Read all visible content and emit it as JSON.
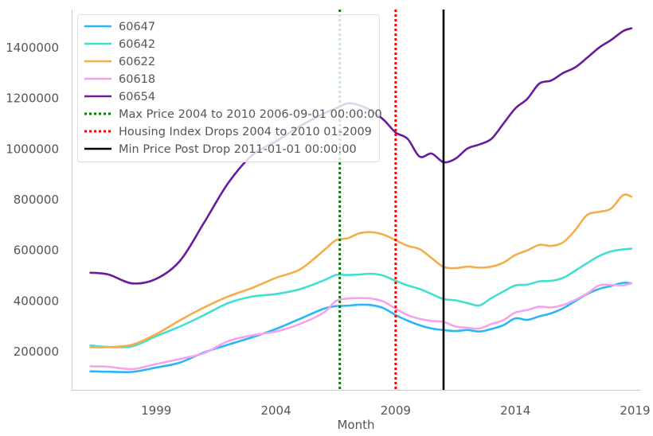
{
  "chart_data": {
    "type": "line",
    "title": "",
    "xlabel": "Month",
    "ylabel": "",
    "xlim": [
      1995.5,
      2019.25
    ],
    "ylim": [
      50000,
      1550000
    ],
    "x_ticks": [
      1999,
      2004,
      2009,
      2014,
      2019
    ],
    "x_tick_labels": [
      "1999",
      "2004",
      "2009",
      "2014",
      "2019"
    ],
    "y_ticks": [
      200000,
      400000,
      600000,
      800000,
      1000000,
      1200000,
      1400000
    ],
    "y_tick_labels": [
      "200000",
      "400000",
      "600000",
      "800000",
      "1000000",
      "1200000",
      "1400000"
    ],
    "grid": false,
    "legend_position": "top-left",
    "series": [
      {
        "name": "60647",
        "color": "#29b6f6",
        "points": [
          [
            1996.25,
            123000
          ],
          [
            1997.0,
            121500
          ],
          [
            1998.0,
            121000
          ],
          [
            1999.0,
            138000
          ],
          [
            2000.0,
            158000
          ],
          [
            2001.0,
            198000
          ],
          [
            2002.0,
            228000
          ],
          [
            2003.0,
            257000
          ],
          [
            2004.0,
            290000
          ],
          [
            2005.0,
            330000
          ],
          [
            2006.0,
            370000
          ],
          [
            2006.5,
            380000
          ],
          [
            2007.0,
            382000
          ],
          [
            2007.5,
            386000
          ],
          [
            2008.0,
            384000
          ],
          [
            2008.5,
            372000
          ],
          [
            2009.0,
            345000
          ],
          [
            2009.5,
            323000
          ],
          [
            2010.0,
            305000
          ],
          [
            2010.5,
            292000
          ],
          [
            2011.0,
            286000
          ],
          [
            2011.5,
            282000
          ],
          [
            2012.0,
            286000
          ],
          [
            2012.5,
            280000
          ],
          [
            2013.0,
            290000
          ],
          [
            2013.5,
            305000
          ],
          [
            2014.0,
            332000
          ],
          [
            2014.5,
            326000
          ],
          [
            2015.0,
            340000
          ],
          [
            2015.5,
            352000
          ],
          [
            2016.0,
            372000
          ],
          [
            2016.5,
            400000
          ],
          [
            2017.0,
            428000
          ],
          [
            2017.5,
            448000
          ],
          [
            2018.0,
            460000
          ],
          [
            2018.5,
            472000
          ],
          [
            2018.85,
            470000
          ]
        ]
      },
      {
        "name": "60642",
        "color": "#40e0d0",
        "points": [
          [
            1996.25,
            225000
          ],
          [
            1997.0,
            219000
          ],
          [
            1998.0,
            222000
          ],
          [
            1999.0,
            262000
          ],
          [
            2000.0,
            300000
          ],
          [
            2001.0,
            345000
          ],
          [
            2002.0,
            392000
          ],
          [
            2003.0,
            418000
          ],
          [
            2004.0,
            428000
          ],
          [
            2005.0,
            447000
          ],
          [
            2006.0,
            482000
          ],
          [
            2006.5,
            503000
          ],
          [
            2007.0,
            503000
          ],
          [
            2007.5,
            505000
          ],
          [
            2008.0,
            508000
          ],
          [
            2008.5,
            500000
          ],
          [
            2009.0,
            480000
          ],
          [
            2009.5,
            462000
          ],
          [
            2010.0,
            448000
          ],
          [
            2010.5,
            428000
          ],
          [
            2011.0,
            408000
          ],
          [
            2011.5,
            403000
          ],
          [
            2012.0,
            392000
          ],
          [
            2012.5,
            383000
          ],
          [
            2013.0,
            412000
          ],
          [
            2013.5,
            438000
          ],
          [
            2014.0,
            462000
          ],
          [
            2014.5,
            465000
          ],
          [
            2015.0,
            478000
          ],
          [
            2015.5,
            480000
          ],
          [
            2016.0,
            492000
          ],
          [
            2016.5,
            520000
          ],
          [
            2017.0,
            550000
          ],
          [
            2017.5,
            578000
          ],
          [
            2018.0,
            596000
          ],
          [
            2018.5,
            604000
          ],
          [
            2018.85,
            607000
          ]
        ]
      },
      {
        "name": "60622",
        "color": "#f5ad4a",
        "points": [
          [
            1996.25,
            218000
          ],
          [
            1997.0,
            218500
          ],
          [
            1998.0,
            228000
          ],
          [
            1999.0,
            270000
          ],
          [
            2000.0,
            325000
          ],
          [
            2001.0,
            375000
          ],
          [
            2002.0,
            418000
          ],
          [
            2003.0,
            452000
          ],
          [
            2004.0,
            492000
          ],
          [
            2005.0,
            525000
          ],
          [
            2006.0,
            600000
          ],
          [
            2006.5,
            640000
          ],
          [
            2007.0,
            648000
          ],
          [
            2007.5,
            668000
          ],
          [
            2008.0,
            672000
          ],
          [
            2008.5,
            662000
          ],
          [
            2009.0,
            640000
          ],
          [
            2009.5,
            618000
          ],
          [
            2010.0,
            605000
          ],
          [
            2010.5,
            570000
          ],
          [
            2011.0,
            535000
          ],
          [
            2011.5,
            530000
          ],
          [
            2012.0,
            536000
          ],
          [
            2012.5,
            532000
          ],
          [
            2013.0,
            536000
          ],
          [
            2013.5,
            552000
          ],
          [
            2014.0,
            582000
          ],
          [
            2014.5,
            600000
          ],
          [
            2015.0,
            622000
          ],
          [
            2015.5,
            618000
          ],
          [
            2016.0,
            632000
          ],
          [
            2016.5,
            680000
          ],
          [
            2017.0,
            740000
          ],
          [
            2017.5,
            752000
          ],
          [
            2018.0,
            765000
          ],
          [
            2018.5,
            818000
          ],
          [
            2018.85,
            812000
          ]
        ]
      },
      {
        "name": "60618",
        "color": "#f5a3eb",
        "points": [
          [
            1996.25,
            143000
          ],
          [
            1997.0,
            141000
          ],
          [
            1998.0,
            132000
          ],
          [
            1999.0,
            152000
          ],
          [
            2000.0,
            172000
          ],
          [
            2001.0,
            195000
          ],
          [
            2002.0,
            242000
          ],
          [
            2003.0,
            265000
          ],
          [
            2004.0,
            280000
          ],
          [
            2005.0,
            310000
          ],
          [
            2006.0,
            355000
          ],
          [
            2006.5,
            400000
          ],
          [
            2007.0,
            410000
          ],
          [
            2007.5,
            412000
          ],
          [
            2008.0,
            410000
          ],
          [
            2008.5,
            398000
          ],
          [
            2009.0,
            370000
          ],
          [
            2009.5,
            345000
          ],
          [
            2010.0,
            330000
          ],
          [
            2010.5,
            322000
          ],
          [
            2011.0,
            318000
          ],
          [
            2011.5,
            300000
          ],
          [
            2012.0,
            295000
          ],
          [
            2012.5,
            292000
          ],
          [
            2013.0,
            310000
          ],
          [
            2013.5,
            325000
          ],
          [
            2014.0,
            355000
          ],
          [
            2014.5,
            365000
          ],
          [
            2015.0,
            378000
          ],
          [
            2015.5,
            375000
          ],
          [
            2016.0,
            385000
          ],
          [
            2016.5,
            405000
          ],
          [
            2017.0,
            430000
          ],
          [
            2017.5,
            462000
          ],
          [
            2018.0,
            464000
          ],
          [
            2018.5,
            462000
          ],
          [
            2018.85,
            470000
          ]
        ]
      },
      {
        "name": "60654",
        "color": "#6a1b9a",
        "points": [
          [
            1996.25,
            512000
          ],
          [
            1997.0,
            505000
          ],
          [
            1998.0,
            470000
          ],
          [
            1999.0,
            488000
          ],
          [
            2000.0,
            560000
          ],
          [
            2001.0,
            710000
          ],
          [
            2002.0,
            865000
          ],
          [
            2003.0,
            975000
          ],
          [
            2004.0,
            1030000
          ],
          [
            2005.0,
            1090000
          ],
          [
            2006.0,
            1140000
          ],
          [
            2006.5,
            1160000
          ],
          [
            2007.0,
            1180000
          ],
          [
            2007.5,
            1172000
          ],
          [
            2008.0,
            1150000
          ],
          [
            2008.5,
            1115000
          ],
          [
            2009.0,
            1065000
          ],
          [
            2009.5,
            1040000
          ],
          [
            2010.0,
            970000
          ],
          [
            2010.5,
            982000
          ],
          [
            2011.0,
            948000
          ],
          [
            2011.5,
            962000
          ],
          [
            2012.0,
            1002000
          ],
          [
            2012.5,
            1018000
          ],
          [
            2013.0,
            1040000
          ],
          [
            2013.5,
            1100000
          ],
          [
            2014.0,
            1160000
          ],
          [
            2014.5,
            1198000
          ],
          [
            2015.0,
            1258000
          ],
          [
            2015.5,
            1270000
          ],
          [
            2016.0,
            1300000
          ],
          [
            2016.5,
            1322000
          ],
          [
            2017.0,
            1360000
          ],
          [
            2017.5,
            1400000
          ],
          [
            2018.0,
            1430000
          ],
          [
            2018.5,
            1465000
          ],
          [
            2018.85,
            1476000
          ]
        ]
      }
    ],
    "vertical_lines": [
      {
        "name": "Max Price 2004 to 2010 2006-09-01 00:00:00",
        "x": 2006.667,
        "color": "#008000",
        "style": "dotted"
      },
      {
        "name": "Housing Index Drops 2004 to 2010 01-2009",
        "x": 2009.0,
        "color": "#ff0000",
        "style": "dotted"
      },
      {
        "name": "Min Price Post Drop 2011-01-01 00:00:00",
        "x": 2011.0,
        "color": "#000000",
        "style": "solid"
      }
    ]
  }
}
